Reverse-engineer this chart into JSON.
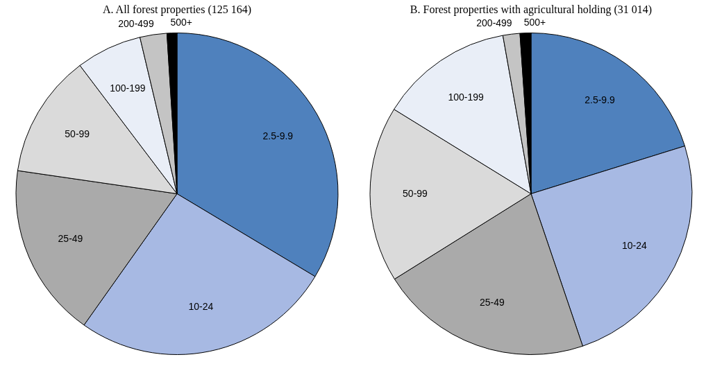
{
  "chart_data": [
    {
      "type": "pie",
      "title": "A. All forest properties (125 164)",
      "categories": [
        "2.5-9.9",
        "10-24",
        "25-49",
        "50-99",
        "100-199",
        "200-499",
        "500+"
      ],
      "values": [
        33.6,
        26.2,
        17.5,
        12.4,
        6.6,
        2.7,
        1.0
      ],
      "colors": [
        "#4f81bd",
        "#a7b9e3",
        "#aaaaaa",
        "#dadada",
        "#e9eef7",
        "#c4c4c4",
        "#000000"
      ]
    },
    {
      "type": "pie",
      "title": "B. Forest properties with agricultural holding (31 014)",
      "categories": [
        "2.5-9.9",
        "10-24",
        "25-49",
        "50-99",
        "100-199",
        "200-499",
        "500+"
      ],
      "values": [
        20.2,
        24.6,
        21.3,
        17.7,
        13.4,
        1.7,
        1.1
      ],
      "colors": [
        "#4f81bd",
        "#a7b9e3",
        "#aaaaaa",
        "#dadada",
        "#e9eef7",
        "#c4c4c4",
        "#000000"
      ]
    }
  ]
}
